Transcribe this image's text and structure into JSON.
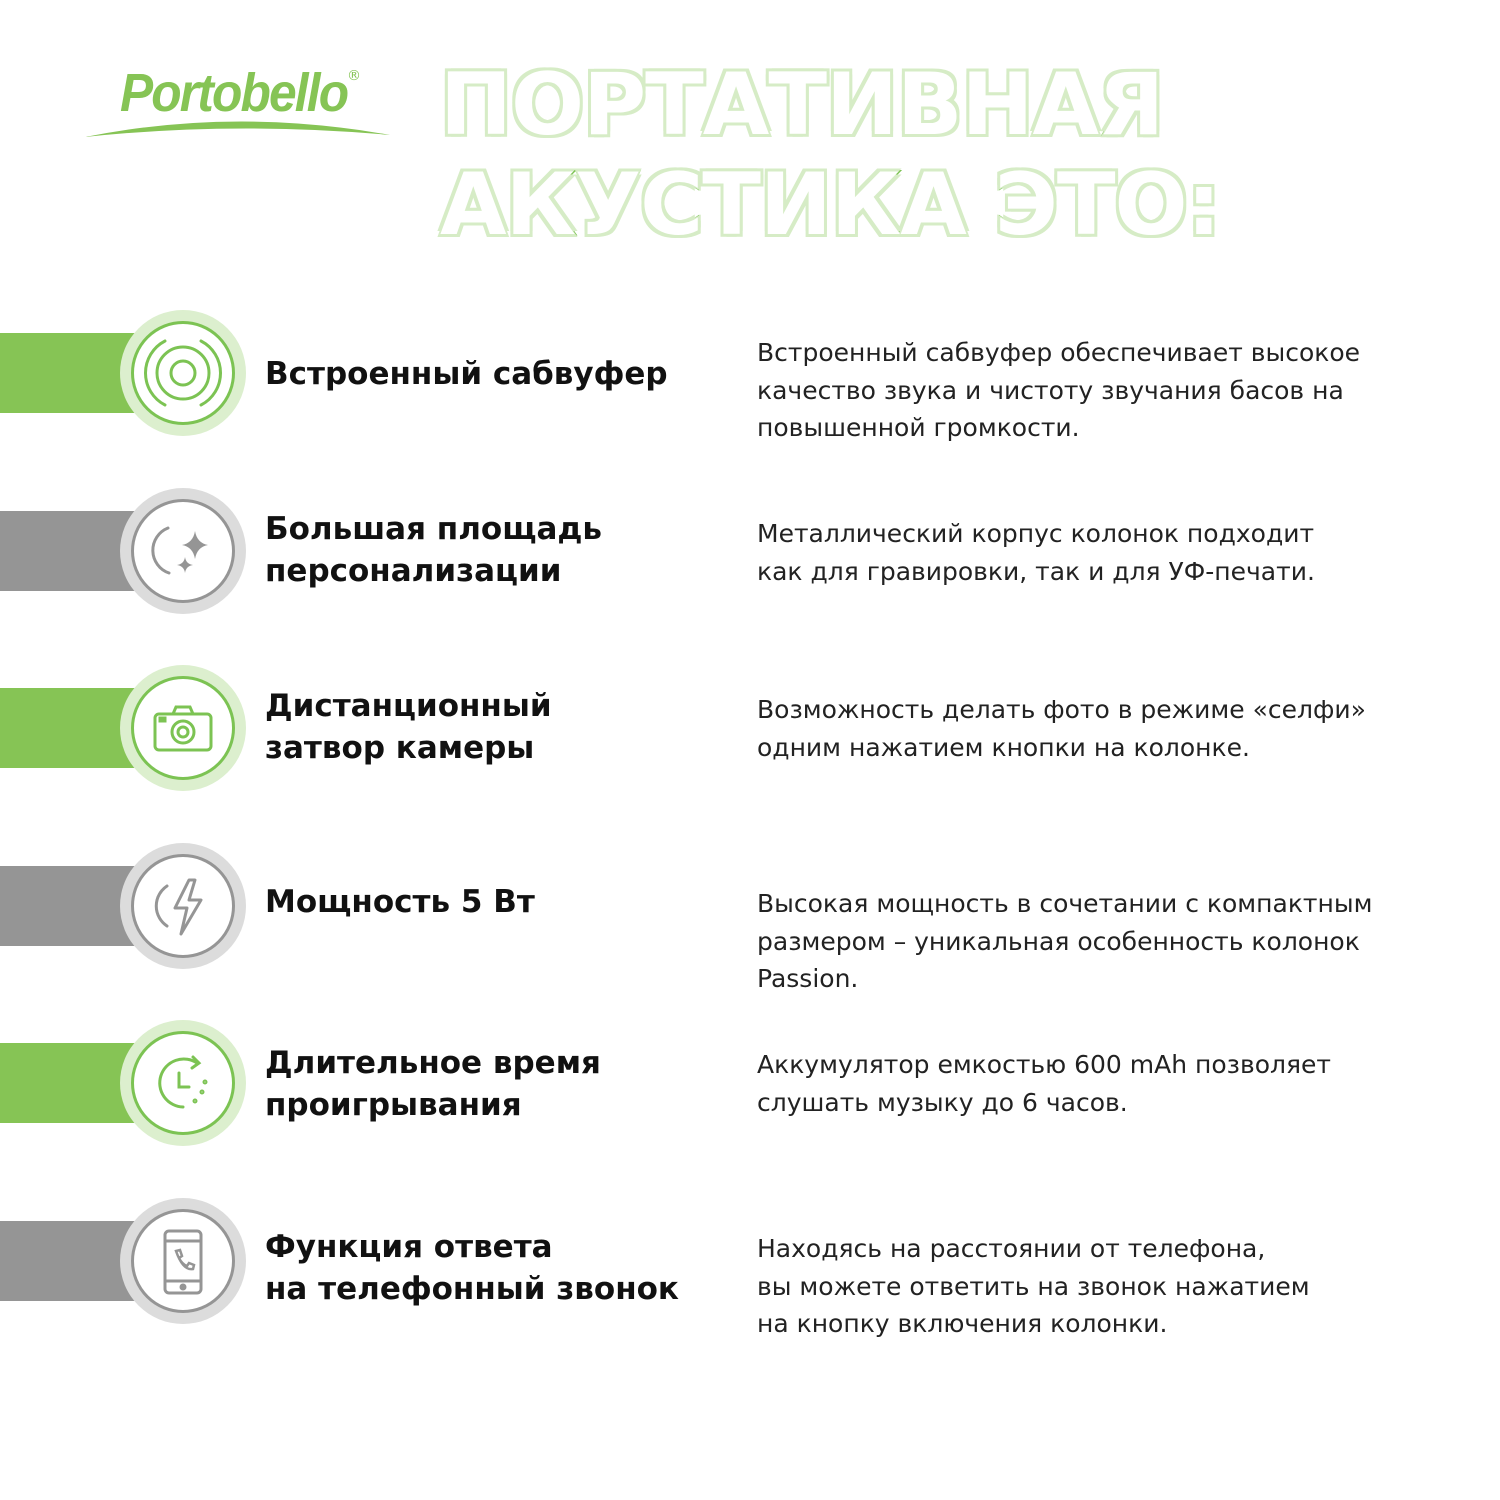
{
  "logo": {
    "text": "Portobello",
    "registered": "®",
    "color": "#86c455"
  },
  "title": {
    "line1": "ПОРТАТИВНАЯ",
    "line2": "АКУСТИКА ЭТО:"
  },
  "colors": {
    "green": "#86c455",
    "gray": "#959595"
  },
  "features": [
    {
      "icon": "subwoofer-icon",
      "style": "green",
      "heading": "Встроенный сабвуфер",
      "description": "Встроенный сабвуфер обеспечивает высокое\nкачество звука и чистоту звучания басов на\nповышенной громкости."
    },
    {
      "icon": "sparkle-icon",
      "style": "gray",
      "heading": "Большая площадь\nперсонализации",
      "description": "Металлический корпус колонок подходит\nкак для гравировки, так и для УФ-печати."
    },
    {
      "icon": "camera-icon",
      "style": "green",
      "heading": "Дистанционный\nзатвор камеры",
      "description": "Возможность делать фото в режиме «селфи»\nодним нажатием кнопки на колонке."
    },
    {
      "icon": "lightning-icon",
      "style": "gray",
      "heading": "Мощность 5 Вт",
      "description": "Высокая мощность в сочетании с компактным\nразмером – уникальная особенность колонок\nPassion."
    },
    {
      "icon": "clock-icon",
      "style": "green",
      "heading": "Длительное время\nпроигрывания",
      "description": "Аккумулятор емкостью 600 mAh позволяет\nслушать музыку до 6 часов."
    },
    {
      "icon": "phone-icon",
      "style": "gray",
      "heading": "Функция ответа\nна телефонный звонок",
      "description": "Находясь на расстоянии от телефона,\nвы можете ответить на звонок нажатием\nна кнопку включения колонки."
    }
  ]
}
